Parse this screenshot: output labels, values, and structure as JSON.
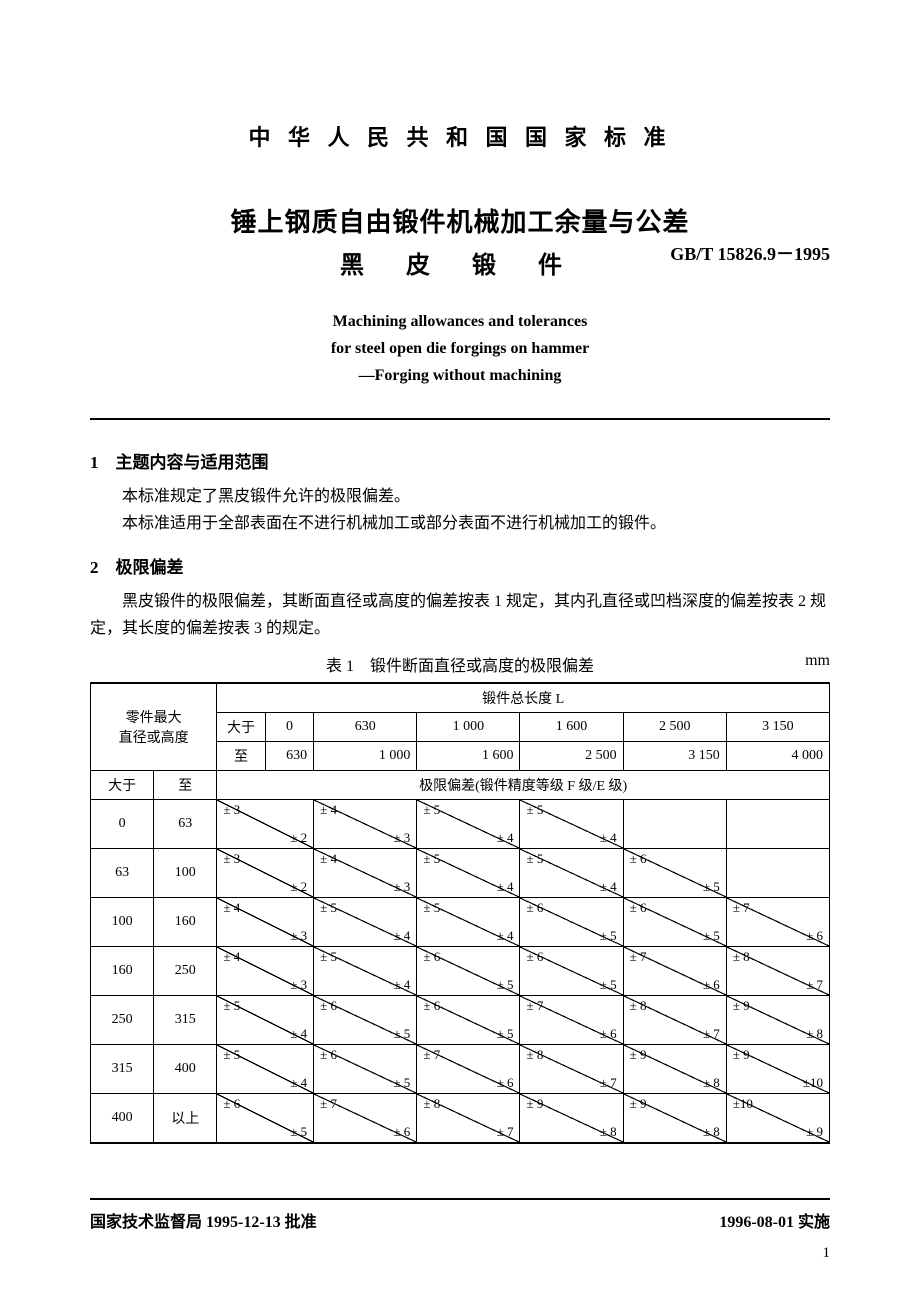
{
  "header": {
    "pretitle": "中 华 人 民 共 和 国 国 家 标 准",
    "title_cn": "锤上钢质自由锻件机械加工余量与公差",
    "subtitle_cn": "黑 皮 锻 件",
    "std_code": "GB/T 15826.9－1995",
    "title_en_1": "Machining allowances and tolerances",
    "title_en_2": "for steel open die forgings on hammer",
    "title_en_3": "—Forging without machining"
  },
  "section1": {
    "heading": "1　主题内容与适用范围",
    "p1": "本标准规定了黑皮锻件允许的极限偏差。",
    "p2": "本标准适用于全部表面在不进行机械加工或部分表面不进行机械加工的锻件。"
  },
  "section2": {
    "heading": "2　极限偏差",
    "p1": "黑皮锻件的极限偏差，其断面直径或高度的偏差按表 1 规定，其内孔直径或凹档深度的偏差按表 2 规定，其长度的偏差按表 3 的规定。"
  },
  "table1": {
    "caption": "表 1　锻件断面直径或高度的极限偏差",
    "unit": "mm",
    "col_head_group": "锻件总长度 L",
    "row_head_group": "零件最大\n直径或高度",
    "gt": "大于",
    "to": "至",
    "mid_banner": "极限偏差(锻件精度等级 F 级/E 级)",
    "col_from": [
      "0",
      "630",
      "1 000",
      "1 600",
      "2 500",
      "3 150"
    ],
    "col_to": [
      "630",
      "1 000",
      "1 600",
      "2 500",
      "3 150",
      "4 000"
    ],
    "row_from": [
      "0",
      "63",
      "100",
      "160",
      "250",
      "315",
      "400"
    ],
    "row_to": [
      "63",
      "100",
      "160",
      "250",
      "315",
      "400",
      "以上"
    ],
    "cells": [
      [
        {
          "f": "± 3",
          "e": "± 2"
        },
        {
          "f": "± 4",
          "e": "± 3"
        },
        {
          "f": "± 5",
          "e": "± 4"
        },
        {
          "f": "± 5",
          "e": "± 4"
        },
        null,
        null
      ],
      [
        {
          "f": "± 3",
          "e": "± 2"
        },
        {
          "f": "± 4",
          "e": "± 3"
        },
        {
          "f": "± 5",
          "e": "± 4"
        },
        {
          "f": "± 5",
          "e": "± 4"
        },
        {
          "f": "± 6",
          "e": "± 5"
        },
        null
      ],
      [
        {
          "f": "± 4",
          "e": "± 3"
        },
        {
          "f": "± 5",
          "e": "± 4"
        },
        {
          "f": "± 5",
          "e": "± 4"
        },
        {
          "f": "± 6",
          "e": "± 5"
        },
        {
          "f": "± 6",
          "e": "± 5"
        },
        {
          "f": "± 7",
          "e": "± 6"
        }
      ],
      [
        {
          "f": "± 4",
          "e": "± 3"
        },
        {
          "f": "± 5",
          "e": "± 4"
        },
        {
          "f": "± 6",
          "e": "± 5"
        },
        {
          "f": "± 6",
          "e": "± 5"
        },
        {
          "f": "± 7",
          "e": "± 6"
        },
        {
          "f": "± 8",
          "e": "± 7"
        }
      ],
      [
        {
          "f": "± 5",
          "e": "± 4"
        },
        {
          "f": "± 6",
          "e": "± 5"
        },
        {
          "f": "± 6",
          "e": "± 5"
        },
        {
          "f": "± 7",
          "e": "± 6"
        },
        {
          "f": "± 8",
          "e": "± 7"
        },
        {
          "f": "± 9",
          "e": "± 8"
        }
      ],
      [
        {
          "f": "± 5",
          "e": "± 4"
        },
        {
          "f": "± 6",
          "e": "± 5"
        },
        {
          "f": "± 7",
          "e": "± 6"
        },
        {
          "f": "± 8",
          "e": "± 7"
        },
        {
          "f": "± 9",
          "e": "± 8"
        },
        {
          "f": "± 9",
          "e": "±10"
        }
      ],
      [
        {
          "f": "± 6",
          "e": "± 5"
        },
        {
          "f": "± 7",
          "e": "± 6"
        },
        {
          "f": "± 8",
          "e": "± 7"
        },
        {
          "f": "± 9",
          "e": "± 8"
        },
        {
          "f": "± 9",
          "e": "± 8"
        },
        {
          "f": "±10",
          "e": "± 9"
        }
      ]
    ]
  },
  "footer": {
    "left": "国家技术监督局 1995-12-13 批准",
    "right": "1996-08-01 实施",
    "page": "1"
  }
}
